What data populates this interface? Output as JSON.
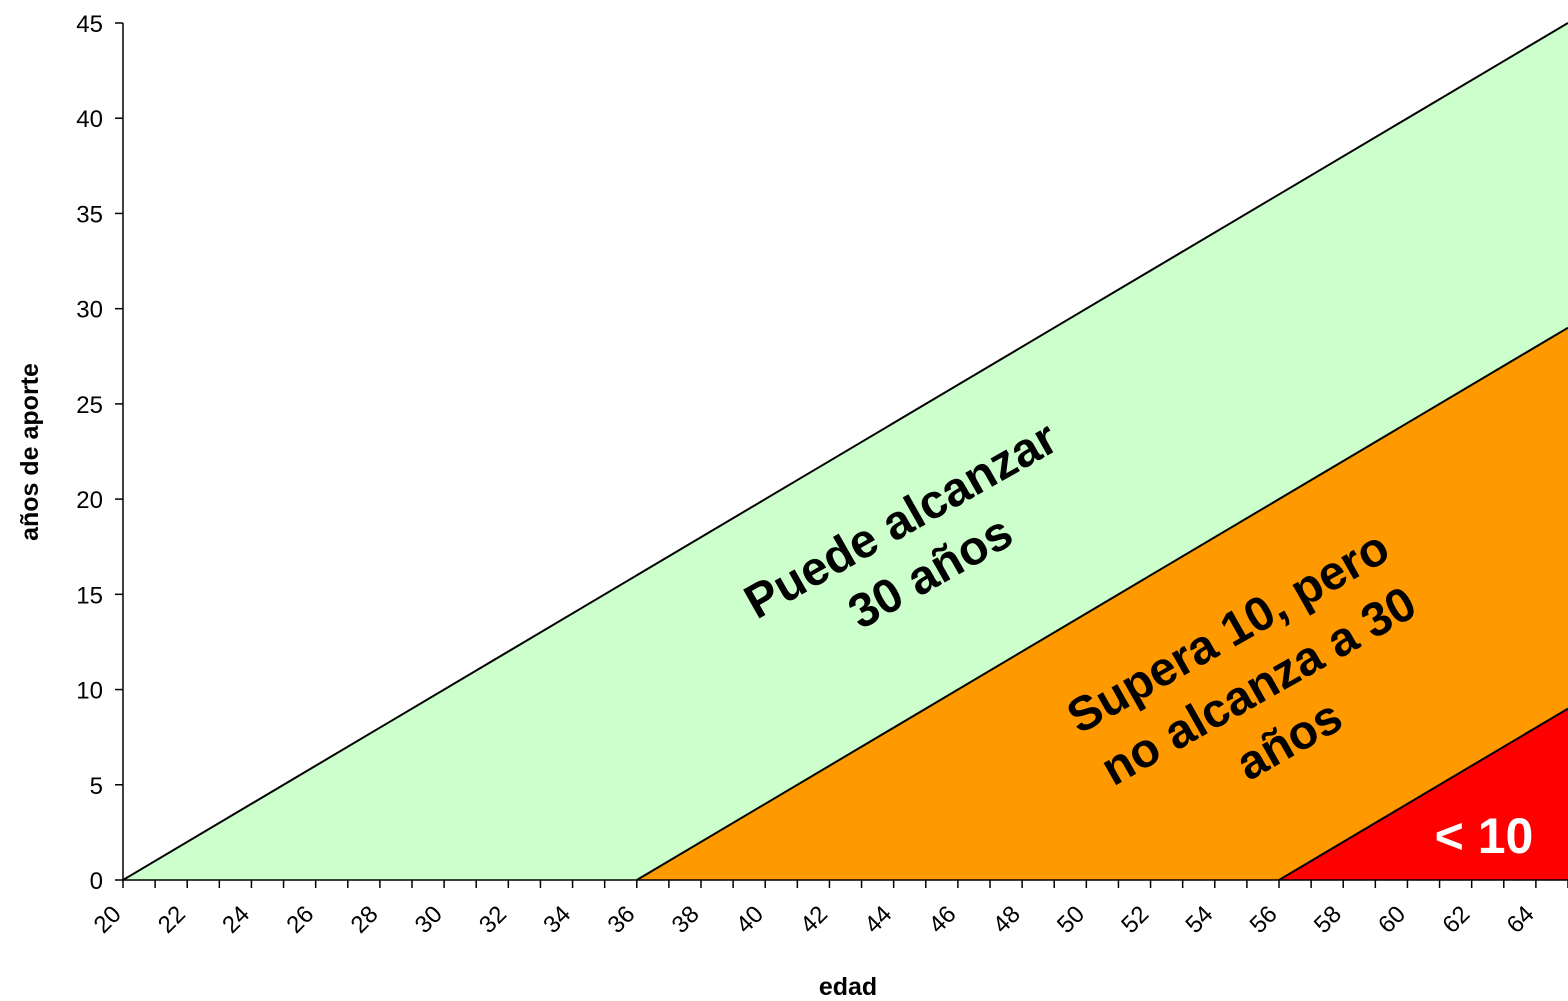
{
  "chart_data": {
    "type": "area",
    "xlabel": "edad",
    "ylabel": "años de aporte",
    "xlim": [
      20,
      65
    ],
    "ylim": [
      0,
      45
    ],
    "x_ticks": [
      "20",
      "22",
      "24",
      "26",
      "28",
      "30",
      "32",
      "34",
      "36",
      "38",
      "40",
      "42",
      "44",
      "46",
      "48",
      "50",
      "52",
      "54",
      "56",
      "58",
      "60",
      "62",
      "64"
    ],
    "y_ticks": [
      "0",
      "5",
      "10",
      "15",
      "20",
      "25",
      "30",
      "35",
      "40",
      "45"
    ],
    "boundaries": [
      {
        "points": [
          [
            20,
            0
          ],
          [
            65,
            45
          ]
        ]
      },
      {
        "points": [
          [
            36,
            0
          ],
          [
            65,
            29
          ]
        ]
      },
      {
        "points": [
          [
            56,
            0
          ],
          [
            65,
            9
          ]
        ]
      }
    ],
    "regions": [
      {
        "color": "#CCFFCC",
        "lines": [
          "Puede alcanzar",
          "30 años"
        ],
        "text_color": "#000000"
      },
      {
        "color": "#FF9900",
        "lines": [
          "Supera 10, pero",
          "no alcanza a 30",
          "años"
        ],
        "text_color": "#000000"
      },
      {
        "color": "#FF0000",
        "lines": [
          "< 10"
        ],
        "text_color": "#FFFFFF"
      }
    ]
  }
}
